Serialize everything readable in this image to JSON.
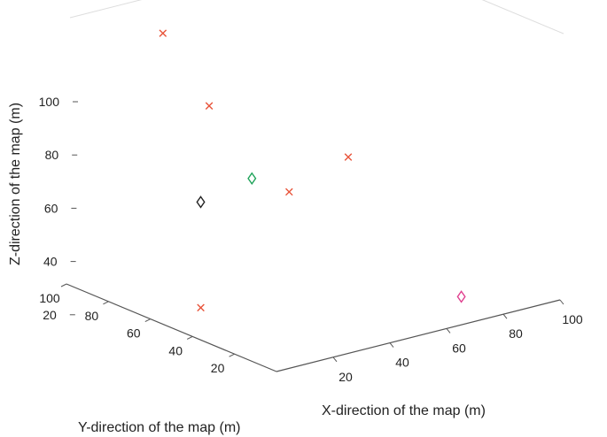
{
  "chart_data": {
    "type": "scatter",
    "projection": "3d",
    "title": "",
    "xlabel": "X-direction of the map (m)",
    "ylabel": "Y-direction of the map (m)",
    "zlabel": "Z-direction of the map (m)",
    "xlim": [
      0,
      100
    ],
    "ylim": [
      0,
      100
    ],
    "zlim": [
      0,
      100
    ],
    "xticks": [
      "20",
      "40",
      "60",
      "80",
      "100"
    ],
    "yticks": [
      "20",
      "40",
      "60",
      "80",
      "100"
    ],
    "zticks": [
      "20",
      "40",
      "60",
      "80",
      "100"
    ],
    "grid": false,
    "legend": "none",
    "series": [
      {
        "marker": "x",
        "color": "#e8543a",
        "points": [
          {
            "x": 15,
            "y": 76,
            "z": 98
          },
          {
            "x": 25,
            "y": 67,
            "z": 71
          },
          {
            "x": 41,
            "y": 50,
            "z": 40
          },
          {
            "x": 61,
            "y": 49,
            "z": 48
          },
          {
            "x": 17,
            "y": 59,
            "z": 0
          }
        ]
      },
      {
        "marker": "diamond",
        "color": "#222222",
        "points": [
          {
            "x": 12,
            "y": 53,
            "z": 43
          }
        ]
      },
      {
        "marker": "diamond",
        "color": "#1fa35a",
        "points": [
          {
            "x": 30,
            "y": 53,
            "z": 47
          }
        ]
      },
      {
        "marker": "diamond",
        "color": "#e0408f",
        "points": [
          {
            "x": 80,
            "y": 20,
            "z": 0
          }
        ]
      }
    ]
  }
}
